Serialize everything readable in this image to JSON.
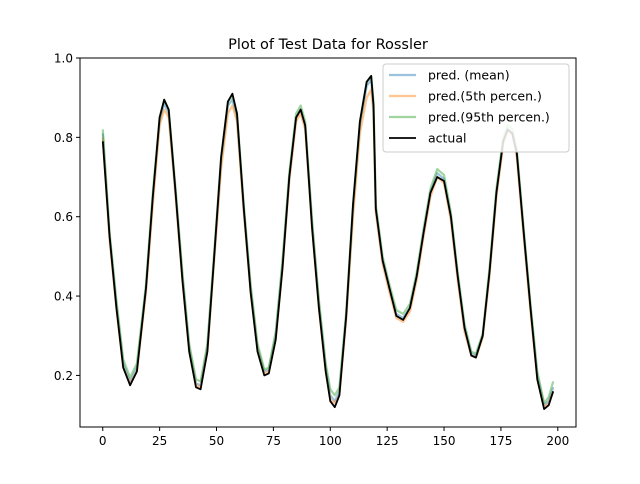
{
  "chart_data": {
    "type": "line",
    "title": "Plot of Test Data for Rossler",
    "xlabel": "",
    "ylabel": "",
    "xlim": [
      -10,
      208
    ],
    "ylim": [
      0.07,
      1.0
    ],
    "xticks": [
      0,
      25,
      50,
      75,
      100,
      125,
      150,
      175,
      200
    ],
    "yticks": [
      0.2,
      0.4,
      0.6,
      0.8,
      1.0
    ],
    "xtick_labels": [
      "0",
      "25",
      "50",
      "75",
      "100",
      "125",
      "150",
      "175",
      "200"
    ],
    "ytick_labels": [
      "0.2",
      "0.4",
      "0.6",
      "0.8",
      "1.0"
    ],
    "grid": false,
    "legend_position": "top-right",
    "series": [
      {
        "name": "pred. (mean)",
        "color": "#1f77b4",
        "opacity": 0.45,
        "points": [
          [
            0,
            0.81
          ],
          [
            3,
            0.55
          ],
          [
            6,
            0.38
          ],
          [
            9,
            0.23
          ],
          [
            12,
            0.185
          ],
          [
            15,
            0.22
          ],
          [
            19,
            0.42
          ],
          [
            22,
            0.65
          ],
          [
            25,
            0.84
          ],
          [
            27,
            0.885
          ],
          [
            29,
            0.86
          ],
          [
            32,
            0.66
          ],
          [
            35,
            0.45
          ],
          [
            38,
            0.27
          ],
          [
            41,
            0.18
          ],
          [
            43,
            0.175
          ],
          [
            46,
            0.27
          ],
          [
            49,
            0.5
          ],
          [
            52,
            0.74
          ],
          [
            55,
            0.88
          ],
          [
            57,
            0.895
          ],
          [
            59,
            0.85
          ],
          [
            62,
            0.62
          ],
          [
            65,
            0.42
          ],
          [
            68,
            0.27
          ],
          [
            71,
            0.21
          ],
          [
            73,
            0.215
          ],
          [
            76,
            0.3
          ],
          [
            79,
            0.48
          ],
          [
            82,
            0.7
          ],
          [
            85,
            0.85
          ],
          [
            87,
            0.87
          ],
          [
            89,
            0.83
          ],
          [
            92,
            0.58
          ],
          [
            95,
            0.38
          ],
          [
            98,
            0.22
          ],
          [
            100,
            0.15
          ],
          [
            102,
            0.135
          ],
          [
            104,
            0.16
          ],
          [
            107,
            0.35
          ],
          [
            110,
            0.62
          ],
          [
            113,
            0.83
          ],
          [
            116,
            0.93
          ],
          [
            118,
            0.945
          ],
          [
            119,
            0.88
          ],
          [
            120,
            0.62
          ],
          [
            123,
            0.49
          ],
          [
            126,
            0.42
          ],
          [
            129,
            0.355
          ],
          [
            132,
            0.345
          ],
          [
            135,
            0.37
          ],
          [
            138,
            0.45
          ],
          [
            141,
            0.56
          ],
          [
            144,
            0.66
          ],
          [
            147,
            0.71
          ],
          [
            150,
            0.695
          ],
          [
            153,
            0.6
          ],
          [
            156,
            0.45
          ],
          [
            159,
            0.32
          ],
          [
            162,
            0.255
          ],
          [
            164,
            0.25
          ],
          [
            167,
            0.3
          ],
          [
            170,
            0.46
          ],
          [
            173,
            0.66
          ],
          [
            176,
            0.79
          ],
          [
            178,
            0.82
          ],
          [
            180,
            0.81
          ],
          [
            182,
            0.76
          ],
          [
            185,
            0.56
          ],
          [
            188,
            0.37
          ],
          [
            191,
            0.2
          ],
          [
            194,
            0.125
          ],
          [
            196,
            0.135
          ],
          [
            198,
            0.17
          ]
        ]
      },
      {
        "name": "pred.(5th percen.)",
        "color": "#ff7f0e",
        "opacity": 0.45,
        "points": [
          [
            0,
            0.8
          ],
          [
            3,
            0.54
          ],
          [
            6,
            0.37
          ],
          [
            9,
            0.22
          ],
          [
            12,
            0.18
          ],
          [
            15,
            0.21
          ],
          [
            19,
            0.41
          ],
          [
            22,
            0.63
          ],
          [
            25,
            0.83
          ],
          [
            27,
            0.87
          ],
          [
            29,
            0.85
          ],
          [
            32,
            0.65
          ],
          [
            35,
            0.44
          ],
          [
            38,
            0.26
          ],
          [
            41,
            0.175
          ],
          [
            43,
            0.17
          ],
          [
            46,
            0.26
          ],
          [
            49,
            0.49
          ],
          [
            52,
            0.72
          ],
          [
            55,
            0.86
          ],
          [
            57,
            0.88
          ],
          [
            59,
            0.84
          ],
          [
            62,
            0.61
          ],
          [
            65,
            0.41
          ],
          [
            68,
            0.265
          ],
          [
            71,
            0.205
          ],
          [
            73,
            0.21
          ],
          [
            76,
            0.29
          ],
          [
            79,
            0.47
          ],
          [
            82,
            0.69
          ],
          [
            85,
            0.84
          ],
          [
            87,
            0.86
          ],
          [
            89,
            0.82
          ],
          [
            92,
            0.57
          ],
          [
            95,
            0.37
          ],
          [
            98,
            0.21
          ],
          [
            100,
            0.14
          ],
          [
            102,
            0.13
          ],
          [
            104,
            0.15
          ],
          [
            107,
            0.34
          ],
          [
            110,
            0.6
          ],
          [
            113,
            0.81
          ],
          [
            116,
            0.9
          ],
          [
            118,
            0.92
          ],
          [
            119,
            0.86
          ],
          [
            120,
            0.61
          ],
          [
            123,
            0.48
          ],
          [
            126,
            0.41
          ],
          [
            129,
            0.345
          ],
          [
            132,
            0.335
          ],
          [
            135,
            0.36
          ],
          [
            138,
            0.44
          ],
          [
            141,
            0.55
          ],
          [
            144,
            0.65
          ],
          [
            147,
            0.7
          ],
          [
            150,
            0.685
          ],
          [
            153,
            0.59
          ],
          [
            156,
            0.44
          ],
          [
            159,
            0.31
          ],
          [
            162,
            0.25
          ],
          [
            164,
            0.245
          ],
          [
            167,
            0.295
          ],
          [
            170,
            0.45
          ],
          [
            173,
            0.65
          ],
          [
            176,
            0.78
          ],
          [
            178,
            0.815
          ],
          [
            180,
            0.805
          ],
          [
            182,
            0.75
          ],
          [
            185,
            0.55
          ],
          [
            188,
            0.36
          ],
          [
            191,
            0.19
          ],
          [
            194,
            0.12
          ],
          [
            196,
            0.13
          ],
          [
            198,
            0.16
          ]
        ]
      },
      {
        "name": "pred.(95th percen.)",
        "color": "#2ca02c",
        "opacity": 0.45,
        "points": [
          [
            0,
            0.82
          ],
          [
            3,
            0.56
          ],
          [
            6,
            0.39
          ],
          [
            9,
            0.24
          ],
          [
            12,
            0.195
          ],
          [
            15,
            0.23
          ],
          [
            19,
            0.43
          ],
          [
            22,
            0.66
          ],
          [
            25,
            0.85
          ],
          [
            27,
            0.895
          ],
          [
            29,
            0.87
          ],
          [
            32,
            0.67
          ],
          [
            35,
            0.46
          ],
          [
            38,
            0.28
          ],
          [
            41,
            0.19
          ],
          [
            43,
            0.185
          ],
          [
            46,
            0.28
          ],
          [
            49,
            0.51
          ],
          [
            52,
            0.75
          ],
          [
            55,
            0.89
          ],
          [
            57,
            0.905
          ],
          [
            59,
            0.86
          ],
          [
            62,
            0.63
          ],
          [
            65,
            0.43
          ],
          [
            68,
            0.28
          ],
          [
            71,
            0.215
          ],
          [
            73,
            0.22
          ],
          [
            76,
            0.31
          ],
          [
            79,
            0.49
          ],
          [
            82,
            0.71
          ],
          [
            85,
            0.86
          ],
          [
            87,
            0.88
          ],
          [
            89,
            0.84
          ],
          [
            92,
            0.59
          ],
          [
            95,
            0.39
          ],
          [
            98,
            0.23
          ],
          [
            100,
            0.165
          ],
          [
            102,
            0.15
          ],
          [
            104,
            0.17
          ],
          [
            107,
            0.36
          ],
          [
            110,
            0.63
          ],
          [
            113,
            0.84
          ],
          [
            116,
            0.94
          ],
          [
            118,
            0.955
          ],
          [
            119,
            0.89
          ],
          [
            120,
            0.63
          ],
          [
            123,
            0.5
          ],
          [
            126,
            0.43
          ],
          [
            129,
            0.365
          ],
          [
            132,
            0.355
          ],
          [
            135,
            0.38
          ],
          [
            138,
            0.46
          ],
          [
            141,
            0.57
          ],
          [
            144,
            0.67
          ],
          [
            147,
            0.72
          ],
          [
            150,
            0.705
          ],
          [
            153,
            0.61
          ],
          [
            156,
            0.46
          ],
          [
            159,
            0.33
          ],
          [
            162,
            0.26
          ],
          [
            164,
            0.255
          ],
          [
            167,
            0.305
          ],
          [
            170,
            0.47
          ],
          [
            173,
            0.67
          ],
          [
            176,
            0.8
          ],
          [
            178,
            0.83
          ],
          [
            180,
            0.82
          ],
          [
            182,
            0.77
          ],
          [
            185,
            0.57
          ],
          [
            188,
            0.38
          ],
          [
            191,
            0.21
          ],
          [
            194,
            0.13
          ],
          [
            196,
            0.145
          ],
          [
            198,
            0.185
          ]
        ]
      },
      {
        "name": "actual",
        "color": "#000000",
        "opacity": 1,
        "points": [
          [
            0,
            0.79
          ],
          [
            3,
            0.55
          ],
          [
            6,
            0.37
          ],
          [
            9,
            0.22
          ],
          [
            12,
            0.175
          ],
          [
            15,
            0.21
          ],
          [
            19,
            0.42
          ],
          [
            22,
            0.65
          ],
          [
            25,
            0.85
          ],
          [
            27,
            0.895
          ],
          [
            29,
            0.87
          ],
          [
            32,
            0.66
          ],
          [
            35,
            0.44
          ],
          [
            38,
            0.26
          ],
          [
            41,
            0.17
          ],
          [
            43,
            0.165
          ],
          [
            46,
            0.26
          ],
          [
            49,
            0.5
          ],
          [
            52,
            0.75
          ],
          [
            55,
            0.89
          ],
          [
            57,
            0.91
          ],
          [
            59,
            0.86
          ],
          [
            62,
            0.62
          ],
          [
            65,
            0.41
          ],
          [
            68,
            0.26
          ],
          [
            71,
            0.2
          ],
          [
            73,
            0.205
          ],
          [
            76,
            0.29
          ],
          [
            79,
            0.47
          ],
          [
            82,
            0.7
          ],
          [
            85,
            0.85
          ],
          [
            87,
            0.87
          ],
          [
            89,
            0.83
          ],
          [
            92,
            0.57
          ],
          [
            95,
            0.37
          ],
          [
            98,
            0.21
          ],
          [
            100,
            0.135
          ],
          [
            102,
            0.12
          ],
          [
            104,
            0.15
          ],
          [
            107,
            0.35
          ],
          [
            110,
            0.63
          ],
          [
            113,
            0.84
          ],
          [
            116,
            0.94
          ],
          [
            118,
            0.955
          ],
          [
            119,
            0.88
          ],
          [
            120,
            0.62
          ],
          [
            123,
            0.49
          ],
          [
            126,
            0.42
          ],
          [
            129,
            0.35
          ],
          [
            132,
            0.34
          ],
          [
            135,
            0.37
          ],
          [
            138,
            0.45
          ],
          [
            141,
            0.56
          ],
          [
            144,
            0.66
          ],
          [
            147,
            0.7
          ],
          [
            150,
            0.69
          ],
          [
            153,
            0.6
          ],
          [
            156,
            0.45
          ],
          [
            159,
            0.32
          ],
          [
            162,
            0.25
          ],
          [
            164,
            0.245
          ],
          [
            167,
            0.3
          ],
          [
            170,
            0.46
          ],
          [
            173,
            0.66
          ],
          [
            176,
            0.79
          ],
          [
            178,
            0.82
          ],
          [
            180,
            0.81
          ],
          [
            182,
            0.76
          ],
          [
            185,
            0.56
          ],
          [
            188,
            0.37
          ],
          [
            191,
            0.19
          ],
          [
            194,
            0.115
          ],
          [
            196,
            0.125
          ],
          [
            198,
            0.16
          ]
        ]
      }
    ]
  }
}
